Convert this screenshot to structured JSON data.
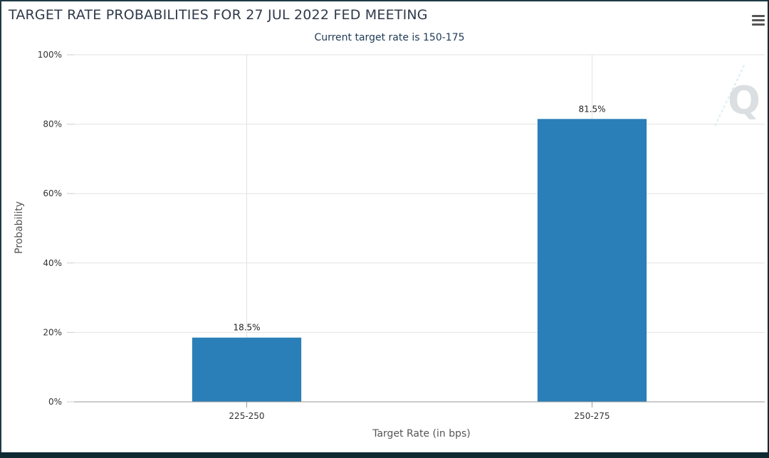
{
  "chart_data": {
    "type": "bar",
    "title": "TARGET RATE PROBABILITIES FOR 27 JUL 2022 FED MEETING",
    "subtitle": "Current target rate is 150-175",
    "xlabel": "Target Rate (in bps)",
    "ylabel": "Probability",
    "categories": [
      "225-250",
      "250-275"
    ],
    "values": [
      18.5,
      81.5
    ],
    "data_labels": [
      "18.5%",
      "81.5%"
    ],
    "ylim": [
      0,
      100
    ],
    "yticks": [
      "0%",
      "20%",
      "40%",
      "60%",
      "80%",
      "100%"
    ],
    "grid": true,
    "bar_color": "#2b7fb8"
  },
  "colors": {
    "accent": "#2b7fb8",
    "grid": "#e2e2e2"
  },
  "icons": {
    "menu": "hamburger-menu-icon",
    "watermark": "q-logo"
  }
}
